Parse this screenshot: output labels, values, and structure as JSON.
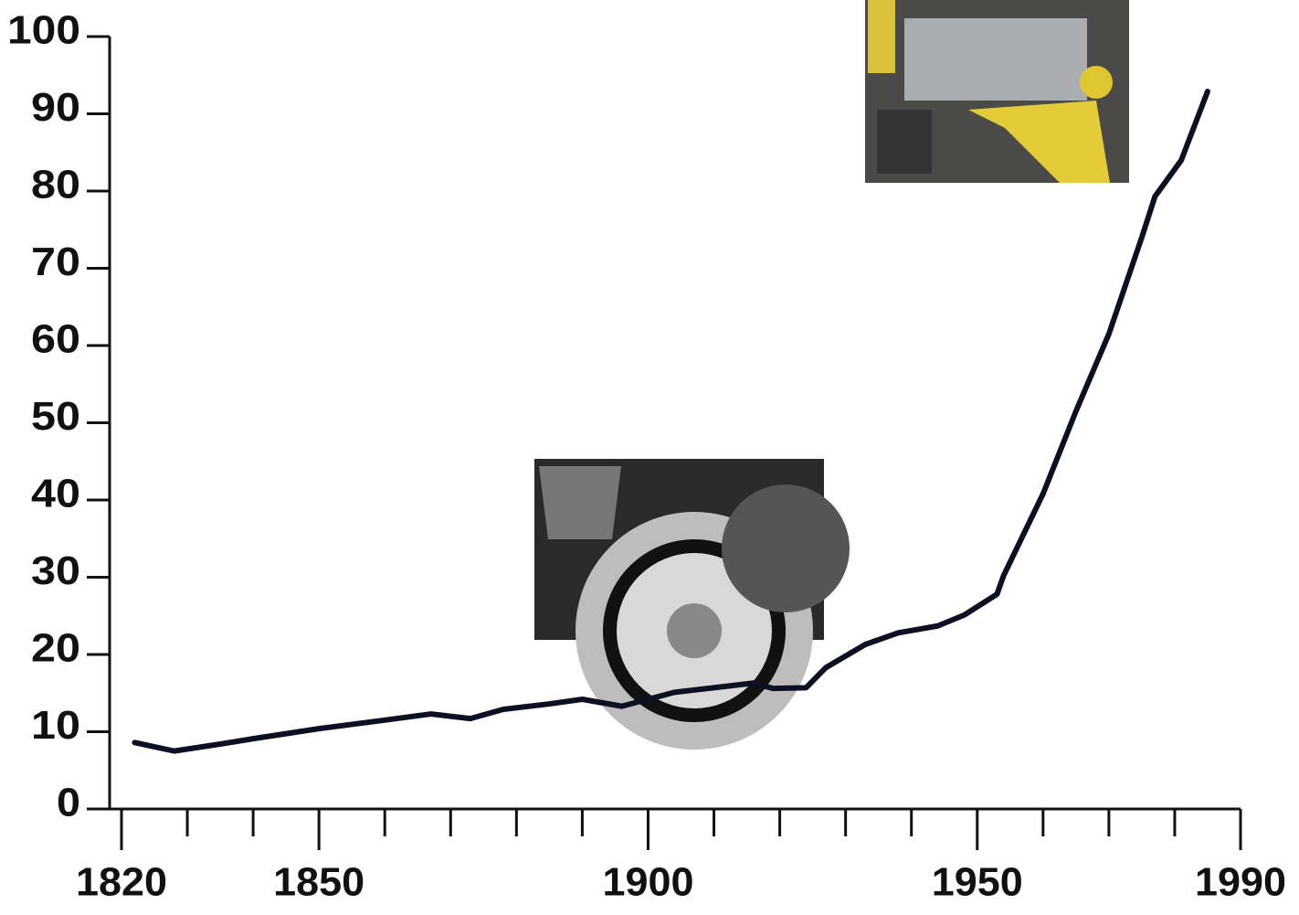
{
  "chart_data": {
    "type": "line",
    "x": [
      1822,
      1828,
      1835,
      1840,
      1850,
      1860,
      1867,
      1873,
      1878,
      1885,
      1890,
      1896,
      1900,
      1904,
      1910,
      1916,
      1919,
      1924,
      1927,
      1933,
      1938,
      1944,
      1948,
      1953,
      1954,
      1960,
      1965,
      1970,
      1975,
      1977,
      1981,
      1985
    ],
    "series": [
      {
        "color": "#0d1022",
        "values": [
          8.6,
          7.5,
          8.4,
          9.1,
          10.4,
          11.5,
          12.3,
          11.7,
          12.9,
          13.6,
          14.2,
          13.3,
          14.2,
          15.1,
          15.7,
          16.3,
          15.6,
          15.7,
          18.3,
          21.3,
          22.8,
          23.7,
          25.1,
          27.8,
          30.2,
          40.8,
          51.5,
          61.5,
          74,
          79.3,
          84,
          92.9
        ]
      }
    ],
    "xlim": [
      1820,
      1990
    ],
    "xticks": [
      1820,
      1850,
      1900,
      1950,
      1990
    ],
    "xminor_ticks": [
      1830,
      1840,
      1860,
      1870,
      1880,
      1890,
      1910,
      1920,
      1930,
      1940,
      1960,
      1970,
      1980
    ],
    "ylim": [
      0,
      100
    ],
    "yticks": [
      0,
      10,
      20,
      30,
      40,
      50,
      60,
      70,
      80,
      90,
      100
    ]
  }
}
